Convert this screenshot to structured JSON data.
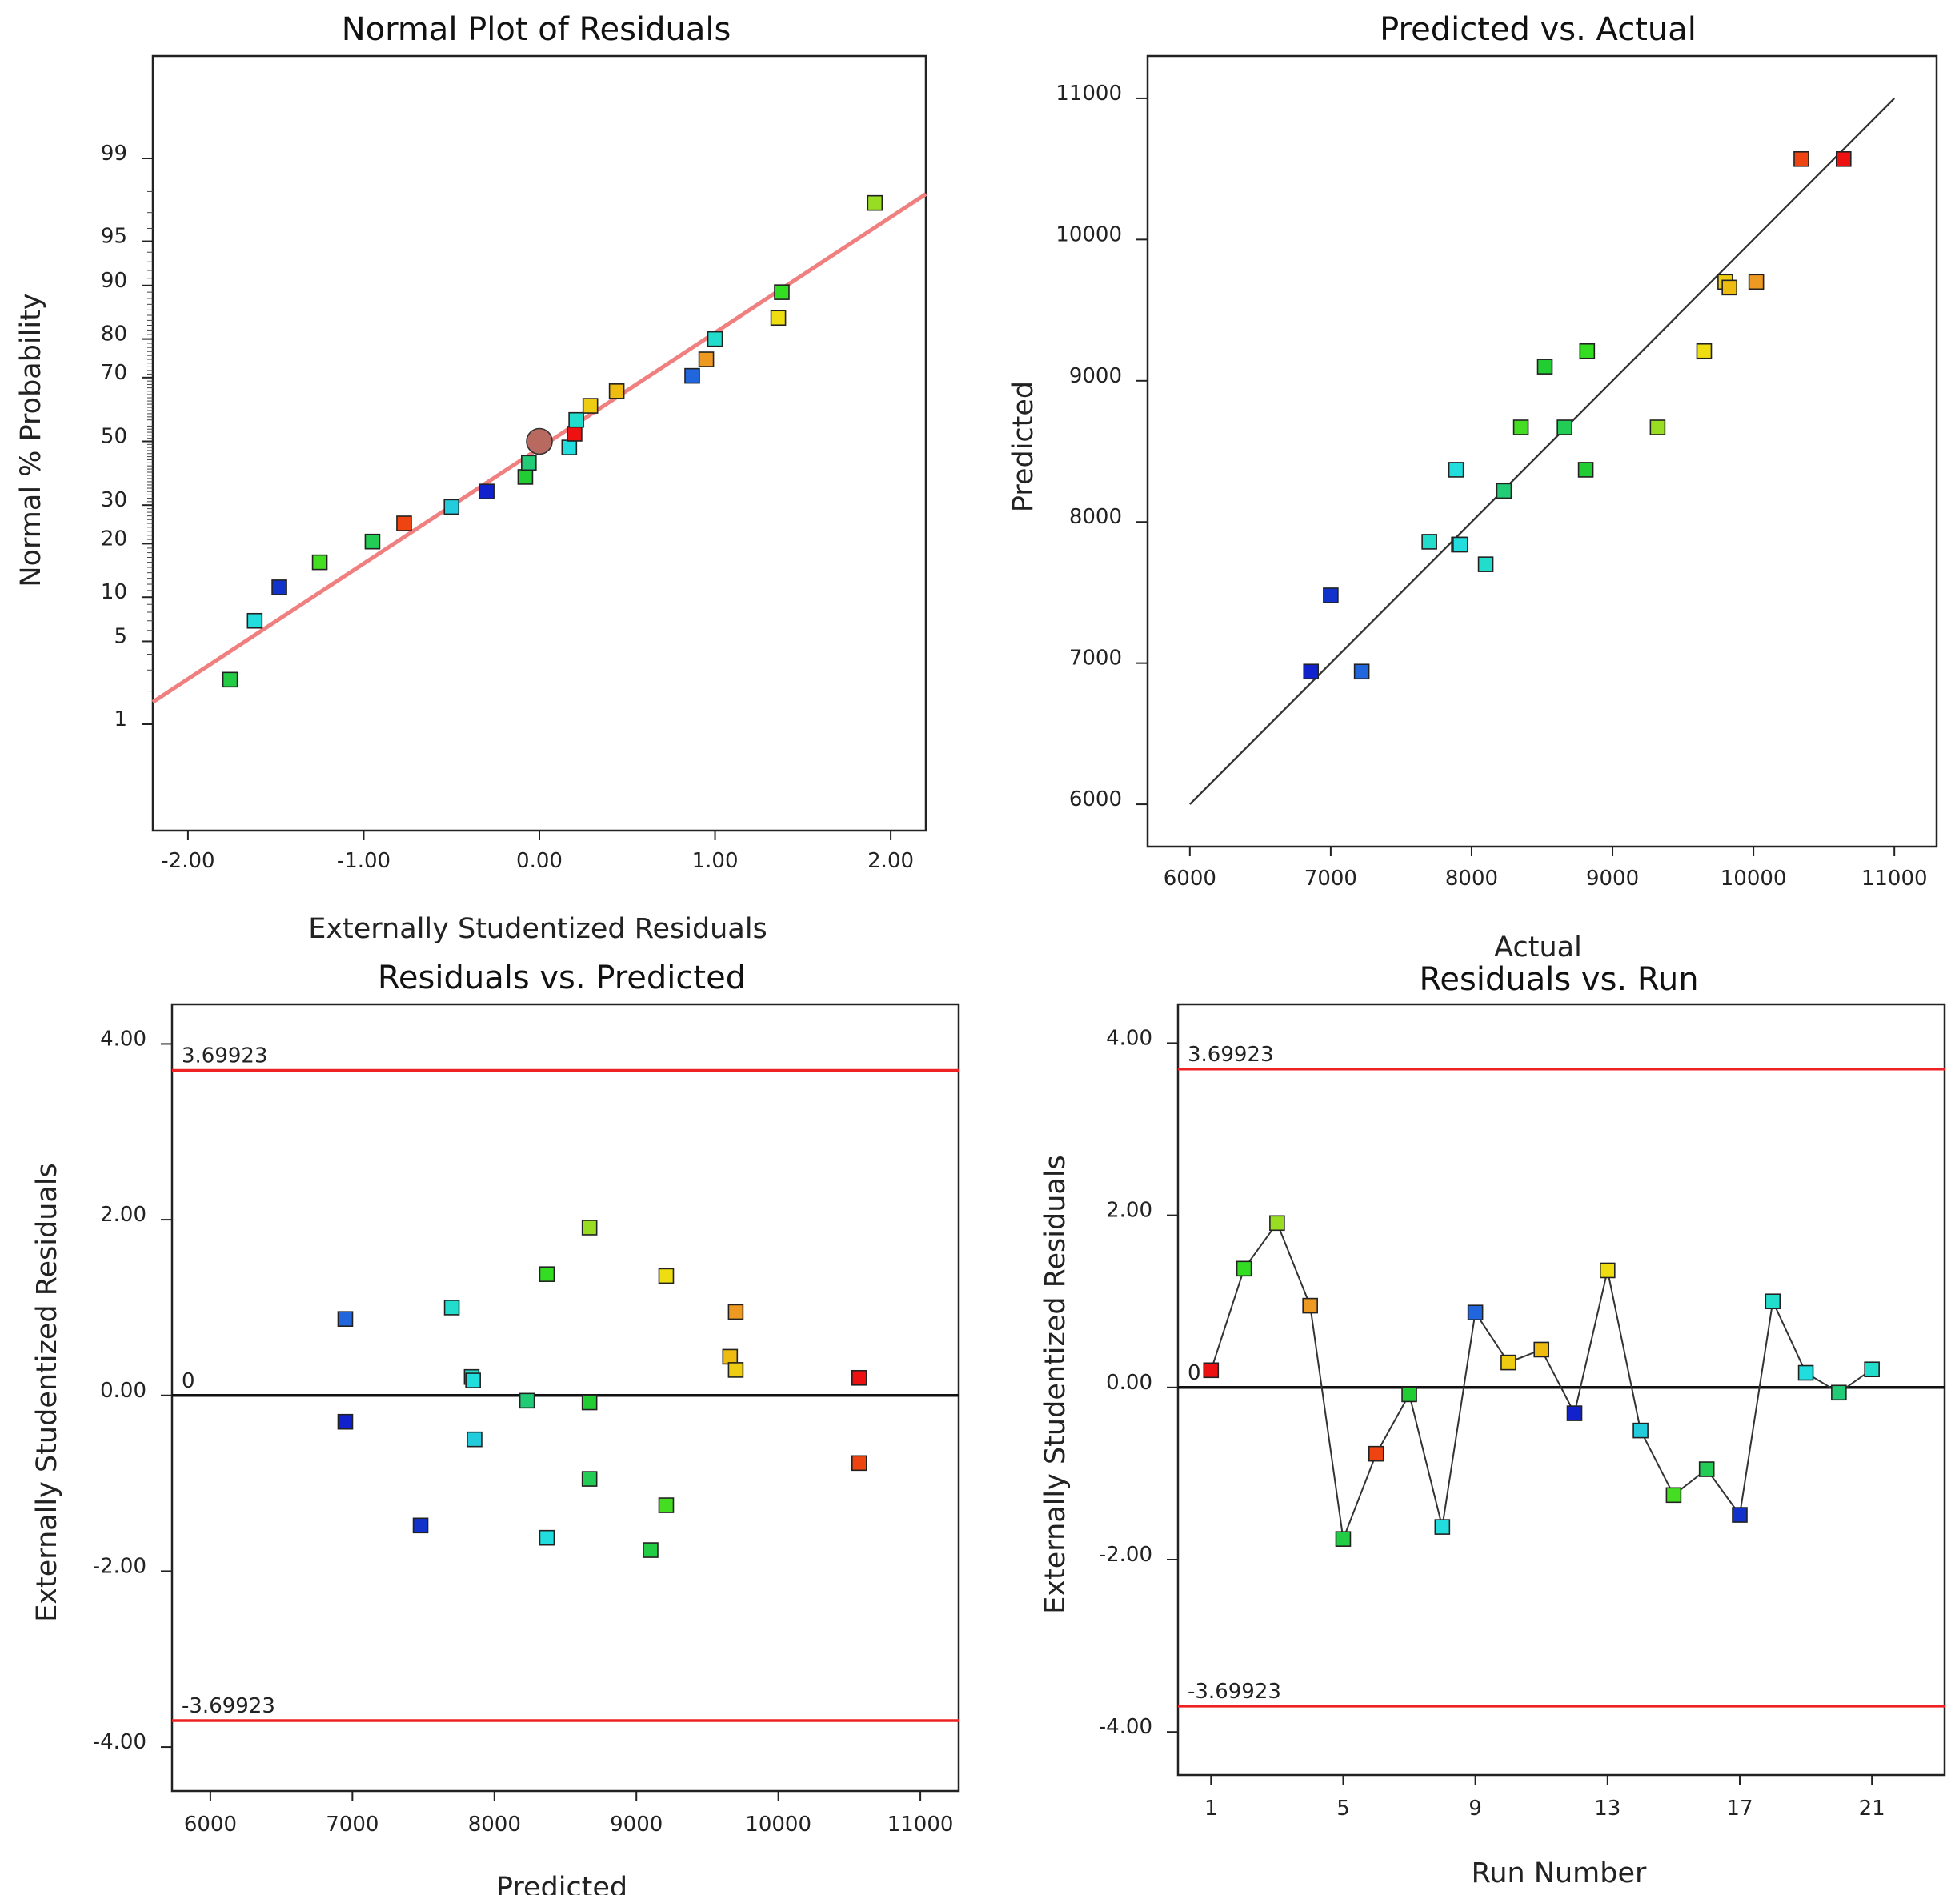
{
  "chart_data": [
    {
      "id": "normal",
      "type": "scatter",
      "title": "Normal Plot of Residuals",
      "xlabel": "Externally Studentized Residuals",
      "ylabel": "Normal % Probability",
      "xlim": [
        -2.2,
        2.2
      ],
      "xticks": [
        -2.0,
        -1.0,
        0.0,
        1.0,
        2.0
      ],
      "xtick_labels": [
        "-2.00",
        "-1.00",
        "0.00",
        "1.00",
        "2.00"
      ],
      "yticks": [
        1,
        5,
        10,
        20,
        30,
        50,
        70,
        80,
        90,
        95,
        99
      ],
      "ytick_labels": [
        "1",
        "5",
        "10",
        "20",
        "30",
        "50",
        "70",
        "80",
        "90",
        "95",
        "99"
      ],
      "reference_line": {
        "color": "#f08080",
        "from": [
          -2.2,
          1.6
        ],
        "to": [
          2.2,
          97.9
        ]
      },
      "center_marker": {
        "x": 0.0,
        "y": 50,
        "color": "#b86a60"
      },
      "points": [
        {
          "x": -1.76,
          "y": 2.5,
          "color": "#22cc44"
        },
        {
          "x": -1.62,
          "y": 7.0,
          "color": "#22dddd"
        },
        {
          "x": -1.48,
          "y": 11.5,
          "color": "#1133cc"
        },
        {
          "x": -1.25,
          "y": 16.0,
          "color": "#44dd22"
        },
        {
          "x": -0.95,
          "y": 20.5,
          "color": "#22cc55"
        },
        {
          "x": -0.77,
          "y": 25.0,
          "color": "#ee4411"
        },
        {
          "x": -0.5,
          "y": 29.5,
          "color": "#22ccdd"
        },
        {
          "x": -0.3,
          "y": 34.0,
          "color": "#1122cc"
        },
        {
          "x": -0.08,
          "y": 38.5,
          "color": "#22cc33"
        },
        {
          "x": -0.06,
          "y": 43.0,
          "color": "#22cc77"
        },
        {
          "x": 0.17,
          "y": 48.0,
          "color": "#22dddd"
        },
        {
          "x": 0.2,
          "y": 52.5,
          "color": "#ee1111"
        },
        {
          "x": 0.21,
          "y": 57.0,
          "color": "#22ddcc"
        },
        {
          "x": 0.29,
          "y": 61.5,
          "color": "#eecc11"
        },
        {
          "x": 0.44,
          "y": 66.0,
          "color": "#eebb11"
        },
        {
          "x": 0.87,
          "y": 70.5,
          "color": "#2266dd"
        },
        {
          "x": 0.95,
          "y": 75.0,
          "color": "#ee9922"
        },
        {
          "x": 1.0,
          "y": 80.0,
          "color": "#22ddcc"
        },
        {
          "x": 1.36,
          "y": 84.5,
          "color": "#eedd11"
        },
        {
          "x": 1.38,
          "y": 89.0,
          "color": "#33dd22"
        },
        {
          "x": 1.91,
          "y": 97.5,
          "color": "#99dd22"
        }
      ]
    },
    {
      "id": "pred_actual",
      "type": "scatter",
      "title": "Predicted vs. Actual",
      "xlabel": "Actual",
      "ylabel": "Predicted",
      "xlim": [
        5700,
        11300
      ],
      "ylim": [
        5700,
        11300
      ],
      "xticks": [
        6000,
        7000,
        8000,
        9000,
        10000,
        11000
      ],
      "yticks": [
        6000,
        7000,
        8000,
        9000,
        10000,
        11000
      ],
      "reference_line": {
        "color": "#333333",
        "from": [
          6000,
          6000
        ],
        "to": [
          11000,
          11000
        ]
      },
      "points": [
        {
          "x": 10640,
          "y": 10570,
          "color": "#ee1111"
        },
        {
          "x": 10340,
          "y": 10570,
          "color": "#ee4411"
        },
        {
          "x": 9800,
          "y": 9700,
          "color": "#eecc11"
        },
        {
          "x": 9830,
          "y": 9660,
          "color": "#eebb11"
        },
        {
          "x": 10020,
          "y": 9700,
          "color": "#ee9922"
        },
        {
          "x": 9650,
          "y": 9210,
          "color": "#eedd11"
        },
        {
          "x": 8520,
          "y": 9100,
          "color": "#22cc33"
        },
        {
          "x": 8820,
          "y": 9210,
          "color": "#33dd22"
        },
        {
          "x": 8350,
          "y": 8670,
          "color": "#44dd22"
        },
        {
          "x": 8660,
          "y": 8670,
          "color": "#22cc55"
        },
        {
          "x": 9320,
          "y": 8670,
          "color": "#99dd22"
        },
        {
          "x": 8810,
          "y": 8370,
          "color": "#22cc33"
        },
        {
          "x": 7890,
          "y": 8370,
          "color": "#22dddd"
        },
        {
          "x": 8230,
          "y": 8220,
          "color": "#22cc77"
        },
        {
          "x": 7700,
          "y": 7860,
          "color": "#22ddcc"
        },
        {
          "x": 7910,
          "y": 7840,
          "color": "#22ccdd"
        },
        {
          "x": 7920,
          "y": 7840,
          "color": "#22dddd"
        },
        {
          "x": 8100,
          "y": 7700,
          "color": "#22ddcc"
        },
        {
          "x": 7000,
          "y": 7480,
          "color": "#1133cc"
        },
        {
          "x": 6860,
          "y": 6940,
          "color": "#1122cc"
        },
        {
          "x": 7220,
          "y": 6940,
          "color": "#2266dd"
        }
      ]
    },
    {
      "id": "resid_pred",
      "type": "scatter",
      "title": "Residuals vs. Predicted",
      "xlabel": "Predicted",
      "ylabel": "Externally Studentized Residuals",
      "xlim": [
        5730,
        11270
      ],
      "ylim": [
        -4.5,
        4.45
      ],
      "xticks": [
        6000,
        7000,
        8000,
        9000,
        10000,
        11000
      ],
      "yticks": [
        -4.0,
        -2.0,
        0.0,
        2.0,
        4.0
      ],
      "ytick_labels": [
        "-4.00",
        "-2.00",
        "0.00",
        "2.00",
        "4.00"
      ],
      "limits": {
        "upper": 3.69923,
        "lower": -3.69923,
        "upper_label": "3.69923",
        "lower_label": "-3.69923",
        "zero_label": "0",
        "limit_color": "#ee2222"
      },
      "points": [
        {
          "x": 6950,
          "y": 0.87,
          "color": "#2266dd"
        },
        {
          "x": 6950,
          "y": -0.3,
          "color": "#1122cc"
        },
        {
          "x": 7480,
          "y": -1.48,
          "color": "#1133cc"
        },
        {
          "x": 7700,
          "y": 1.0,
          "color": "#22ddcc"
        },
        {
          "x": 7840,
          "y": 0.21,
          "color": "#22ddcc"
        },
        {
          "x": 7850,
          "y": 0.17,
          "color": "#22dddd"
        },
        {
          "x": 7860,
          "y": -0.5,
          "color": "#22ccdd"
        },
        {
          "x": 8230,
          "y": -0.06,
          "color": "#22cc77"
        },
        {
          "x": 8370,
          "y": 1.38,
          "color": "#33dd22"
        },
        {
          "x": 8370,
          "y": -1.62,
          "color": "#22dddd"
        },
        {
          "x": 8670,
          "y": 1.91,
          "color": "#99dd22"
        },
        {
          "x": 8670,
          "y": -0.08,
          "color": "#22cc33"
        },
        {
          "x": 8670,
          "y": -0.95,
          "color": "#22cc55"
        },
        {
          "x": 9100,
          "y": -1.76,
          "color": "#22cc44"
        },
        {
          "x": 9210,
          "y": 1.36,
          "color": "#eedd11"
        },
        {
          "x": 9210,
          "y": -1.25,
          "color": "#44dd22"
        },
        {
          "x": 9660,
          "y": 0.44,
          "color": "#eebb11"
        },
        {
          "x": 9700,
          "y": 0.29,
          "color": "#eecc11"
        },
        {
          "x": 9700,
          "y": 0.95,
          "color": "#ee9922"
        },
        {
          "x": 10570,
          "y": 0.2,
          "color": "#ee1111"
        },
        {
          "x": 10570,
          "y": -0.77,
          "color": "#ee4411"
        }
      ]
    },
    {
      "id": "resid_run",
      "type": "line",
      "title": "Residuals vs. Run",
      "xlabel": "Run Number",
      "ylabel": "Externally Studentized Residuals",
      "xlim": [
        0,
        23.2
      ],
      "ylim": [
        -4.5,
        4.45
      ],
      "xticks": [
        1,
        5,
        9,
        13,
        17,
        21
      ],
      "yticks": [
        -4.0,
        -2.0,
        0.0,
        2.0,
        4.0
      ],
      "ytick_labels": [
        "-4.00",
        "-2.00",
        "0.00",
        "2.00",
        "4.00"
      ],
      "limits": {
        "upper": 3.69923,
        "lower": -3.69923,
        "upper_label": "3.69923",
        "lower_label": "-3.69923",
        "zero_label": "0",
        "limit_color": "#ee2222"
      },
      "points": [
        {
          "x": 1,
          "y": 0.2,
          "color": "#ee1111"
        },
        {
          "x": 2,
          "y": 1.38,
          "color": "#33dd22"
        },
        {
          "x": 3,
          "y": 1.91,
          "color": "#99dd22"
        },
        {
          "x": 4,
          "y": 0.95,
          "color": "#ee9922"
        },
        {
          "x": 5,
          "y": -1.76,
          "color": "#22cc44"
        },
        {
          "x": 6,
          "y": -0.77,
          "color": "#ee4411"
        },
        {
          "x": 7,
          "y": -0.08,
          "color": "#22cc33"
        },
        {
          "x": 8,
          "y": -1.62,
          "color": "#22dddd"
        },
        {
          "x": 9,
          "y": 0.87,
          "color": "#2266dd"
        },
        {
          "x": 10,
          "y": 0.29,
          "color": "#eecc11"
        },
        {
          "x": 11,
          "y": 0.44,
          "color": "#eebb11"
        },
        {
          "x": 12,
          "y": -0.3,
          "color": "#1122cc"
        },
        {
          "x": 13,
          "y": 1.36,
          "color": "#eedd11"
        },
        {
          "x": 14,
          "y": -0.5,
          "color": "#22ccdd"
        },
        {
          "x": 15,
          "y": -1.25,
          "color": "#44dd22"
        },
        {
          "x": 16,
          "y": -0.95,
          "color": "#22cc55"
        },
        {
          "x": 17,
          "y": -1.48,
          "color": "#1133cc"
        },
        {
          "x": 18,
          "y": 1.0,
          "color": "#22ddcc"
        },
        {
          "x": 19,
          "y": 0.17,
          "color": "#22dddd"
        },
        {
          "x": 20,
          "y": -0.06,
          "color": "#22cc77"
        },
        {
          "x": 21,
          "y": 0.21,
          "color": "#22ddcc"
        }
      ]
    }
  ]
}
